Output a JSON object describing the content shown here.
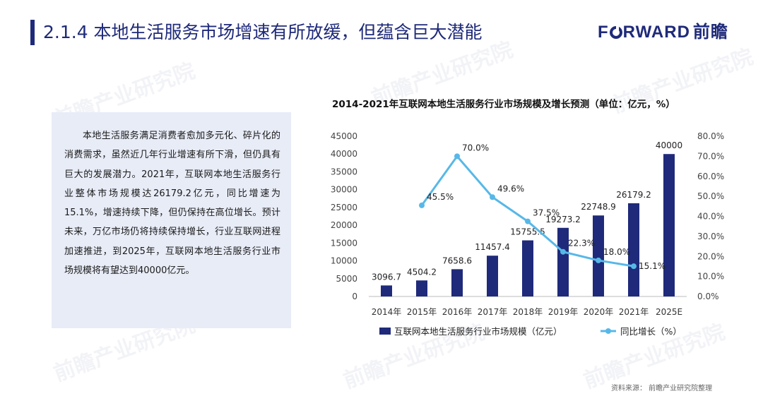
{
  "header": {
    "title": "2.1.4 本地生活服务市场增速有所放缓，但蕴含巨大潜能",
    "logo_en": "FORWARD",
    "logo_cn": "前瞻"
  },
  "colors": {
    "brand": "#1f2a7a",
    "bar": "#1f2a7a",
    "line": "#57b8e8",
    "panel": "#e8ecf7"
  },
  "text_panel": {
    "body": "本地生活服务满足消费者愈加多元化、碎片化的消费需求，虽然近几年行业增速有所下滑，但仍具有巨大的发展潜力。2021年，互联网本地生活服务行业整体市场规模达26179.2亿元，同比增速为15.1%，增速持续下降，但仍保持在高位增长。预计未来，万亿市场仍将持续保持增长，行业互联网进程加速推进，到2025年，互联网本地生活服务行业市场规模将有望达到40000亿元。"
  },
  "watermark": "前瞻产业研究院",
  "chart_data": {
    "type": "bar",
    "title": "2014-2021年互联网本地生活服务行业市场规模及增长预测（单位：亿元，%）",
    "categories": [
      "2014年",
      "2015年",
      "2016年",
      "2017年",
      "2018年",
      "2019年",
      "2020年",
      "2021年",
      "2025E"
    ],
    "series": [
      {
        "name": "互联网本地生活服务行业市场规模（亿元）",
        "type": "bar",
        "axis": "left",
        "values": [
          3096.7,
          4504.2,
          7658.6,
          11457.4,
          15755.5,
          19273.2,
          22748.9,
          26179.2,
          40000
        ],
        "labels": [
          "3096.7",
          "4504.2",
          "7658.6",
          "11457.4",
          "15755.5",
          "19273.2",
          "22748.9",
          "26179.2",
          "40000"
        ]
      },
      {
        "name": "同比增长（%）",
        "type": "line",
        "axis": "right",
        "values": [
          null,
          45.5,
          70.0,
          49.6,
          37.5,
          22.3,
          18.0,
          15.1,
          null
        ],
        "labels": [
          null,
          "45.5%",
          "70.0%",
          "49.6%",
          "37.5%",
          "22.3%",
          "18.0%",
          "15.1%",
          null
        ]
      }
    ],
    "y_left": {
      "min": 0,
      "max": 45000,
      "step": 5000,
      "ticks": [
        "0",
        "5000",
        "10000",
        "15000",
        "20000",
        "25000",
        "30000",
        "35000",
        "40000",
        "45000"
      ]
    },
    "y_right": {
      "min": 0,
      "max": 80,
      "step": 10,
      "ticks": [
        "0.0%",
        "10.0%",
        "20.0%",
        "30.0%",
        "40.0%",
        "50.0%",
        "60.0%",
        "70.0%",
        "80.0%"
      ]
    },
    "legend": [
      "互联网本地生活服务行业市场规模（亿元）",
      "同比增长（%）"
    ],
    "legend_position": "bottom",
    "grid": false
  },
  "footer": {
    "source": "资料来源： 前瞻产业研究院整理"
  }
}
